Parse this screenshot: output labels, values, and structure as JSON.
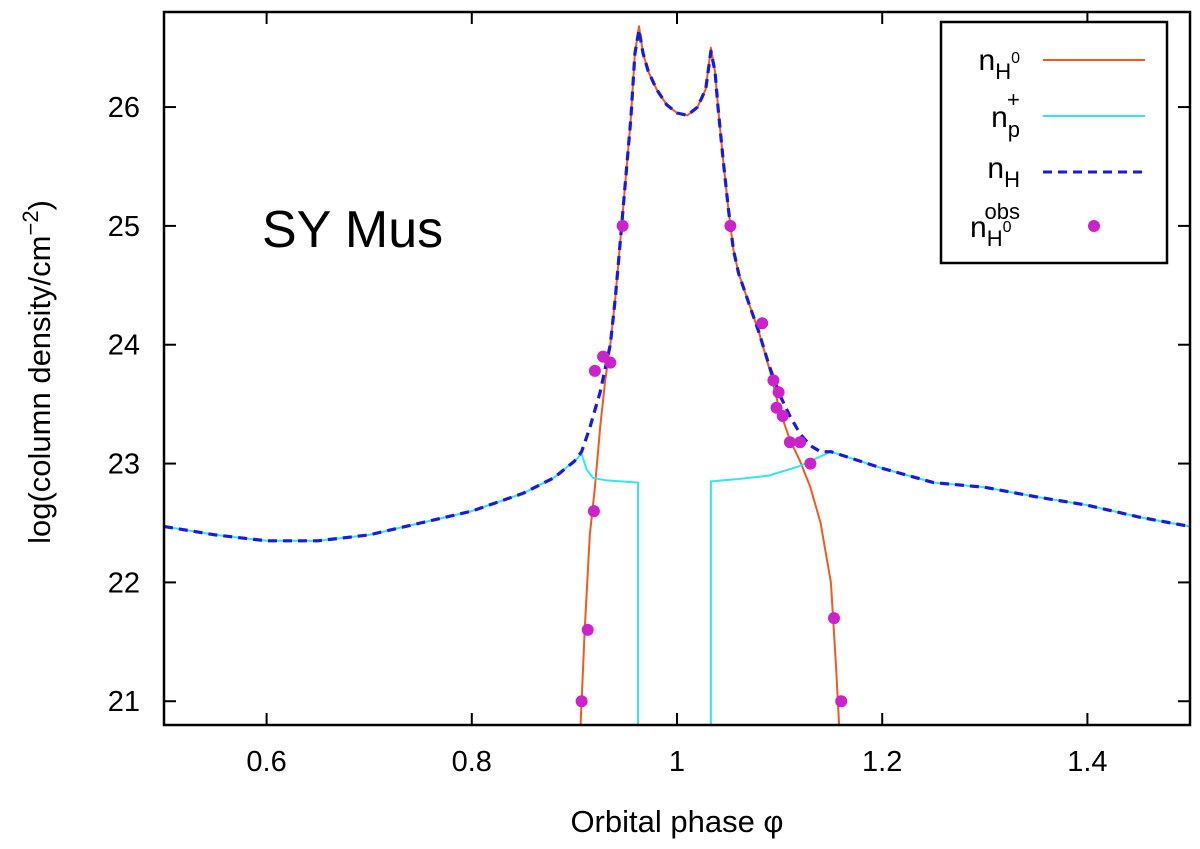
{
  "chart_data": {
    "type": "line",
    "title": "",
    "annotation": "SY Mus",
    "xlabel": "Orbital phase φ",
    "ylabel": "log(column density/cm−2)",
    "ylabel_parts": {
      "main": "log(column density/cm",
      "sup": "−2",
      "close": ")"
    },
    "xlim": [
      0.5,
      1.5
    ],
    "ylim": [
      20.8,
      26.8
    ],
    "xticks": [
      0.6,
      0.8,
      1.0,
      1.2,
      1.4
    ],
    "xtick_labels": [
      "0.6",
      "0.8",
      "1",
      "1.2",
      "1.4"
    ],
    "yticks": [
      21,
      22,
      23,
      24,
      25,
      26
    ],
    "ytick_labels": [
      "21",
      "22",
      "23",
      "24",
      "25",
      "26"
    ],
    "grid": false,
    "legend_position": "top-right",
    "colors": {
      "nH0": "#f05a1e",
      "np": "#33e6ee",
      "nH": "#1a1adc",
      "obs": "#cc22cc"
    },
    "series": [
      {
        "name": "nH0",
        "legend": {
          "base": "n",
          "sub": "H",
          "sup": "0",
          "sub_sup": "0"
        },
        "style": "solid",
        "segments": [
          [
            [
              0.906,
              20.8
            ],
            [
              0.91,
              21.6
            ],
            [
              0.915,
              22.4
            ],
            [
              0.92,
              22.8
            ],
            [
              0.925,
              23.3
            ],
            [
              0.93,
              23.7
            ],
            [
              0.935,
              24.0
            ],
            [
              0.94,
              24.4
            ],
            [
              0.945,
              24.9
            ],
            [
              0.95,
              25.4
            ],
            [
              0.955,
              25.9
            ],
            [
              0.959,
              26.45
            ],
            [
              0.963,
              26.68
            ],
            [
              0.967,
              26.45
            ],
            [
              0.972,
              26.3
            ],
            [
              0.98,
              26.15
            ],
            [
              0.99,
              26.02
            ],
            [
              1.0,
              25.95
            ],
            [
              1.01,
              25.93
            ],
            [
              1.02,
              26.0
            ],
            [
              1.028,
              26.15
            ],
            [
              1.033,
              26.5
            ],
            [
              1.037,
              26.3
            ],
            [
              1.04,
              26.0
            ],
            [
              1.045,
              25.55
            ],
            [
              1.05,
              25.15
            ],
            [
              1.055,
              24.8
            ],
            [
              1.06,
              24.6
            ],
            [
              1.07,
              24.35
            ],
            [
              1.08,
              24.1
            ],
            [
              1.09,
              23.8
            ],
            [
              1.1,
              23.45
            ],
            [
              1.11,
              23.2
            ],
            [
              1.12,
              23.02
            ],
            [
              1.13,
              22.8
            ],
            [
              1.14,
              22.5
            ],
            [
              1.15,
              22.0
            ],
            [
              1.155,
              21.3
            ],
            [
              1.158,
              20.8
            ]
          ]
        ]
      },
      {
        "name": "np+",
        "legend": {
          "base": "n",
          "sub": "p",
          "sup": "+"
        },
        "style": "solid",
        "segments": [
          [
            [
              0.5,
              22.47
            ],
            [
              0.55,
              22.4
            ],
            [
              0.6,
              22.35
            ],
            [
              0.65,
              22.35
            ],
            [
              0.7,
              22.4
            ],
            [
              0.75,
              22.5
            ],
            [
              0.8,
              22.6
            ],
            [
              0.85,
              22.75
            ],
            [
              0.88,
              22.88
            ],
            [
              0.9,
              23.02
            ],
            [
              0.907,
              23.08
            ],
            [
              0.912,
              22.95
            ],
            [
              0.918,
              22.88
            ],
            [
              0.93,
              22.86
            ],
            [
              0.962,
              22.84
            ],
            [
              0.962,
              20.8
            ]
          ],
          [
            [
              1.033,
              20.8
            ],
            [
              1.033,
              22.85
            ],
            [
              1.06,
              22.87
            ],
            [
              1.09,
              22.9
            ],
            [
              1.12,
              22.98
            ],
            [
              1.15,
              23.1
            ],
            [
              1.2,
              22.96
            ],
            [
              1.25,
              22.84
            ],
            [
              1.3,
              22.8
            ],
            [
              1.35,
              22.72
            ],
            [
              1.4,
              22.65
            ],
            [
              1.45,
              22.55
            ],
            [
              1.5,
              22.47
            ]
          ]
        ]
      },
      {
        "name": "nH",
        "legend": {
          "base": "n",
          "sub": "H"
        },
        "style": "dashed",
        "segments": [
          [
            [
              0.5,
              22.47
            ],
            [
              0.55,
              22.4
            ],
            [
              0.6,
              22.35
            ],
            [
              0.65,
              22.35
            ],
            [
              0.7,
              22.4
            ],
            [
              0.75,
              22.5
            ],
            [
              0.8,
              22.6
            ],
            [
              0.85,
              22.75
            ],
            [
              0.88,
              22.88
            ],
            [
              0.9,
              23.02
            ],
            [
              0.907,
              23.1
            ],
            [
              0.915,
              23.3
            ],
            [
              0.92,
              23.45
            ],
            [
              0.925,
              23.6
            ],
            [
              0.93,
              23.8
            ],
            [
              0.935,
              24.0
            ],
            [
              0.94,
              24.4
            ],
            [
              0.945,
              24.9
            ],
            [
              0.95,
              25.4
            ],
            [
              0.955,
              25.9
            ],
            [
              0.959,
              26.45
            ],
            [
              0.963,
              26.65
            ],
            [
              0.967,
              26.45
            ],
            [
              0.972,
              26.3
            ],
            [
              0.98,
              26.15
            ],
            [
              0.99,
              26.02
            ],
            [
              1.0,
              25.95
            ],
            [
              1.01,
              25.93
            ],
            [
              1.02,
              26.0
            ],
            [
              1.028,
              26.15
            ],
            [
              1.033,
              26.47
            ],
            [
              1.037,
              26.3
            ],
            [
              1.04,
              26.0
            ],
            [
              1.045,
              25.55
            ],
            [
              1.05,
              25.15
            ],
            [
              1.055,
              24.8
            ],
            [
              1.06,
              24.6
            ],
            [
              1.07,
              24.35
            ],
            [
              1.08,
              24.1
            ],
            [
              1.09,
              23.82
            ],
            [
              1.1,
              23.58
            ],
            [
              1.11,
              23.4
            ],
            [
              1.12,
              23.25
            ],
            [
              1.13,
              23.15
            ],
            [
              1.14,
              23.1
            ],
            [
              1.15,
              23.1
            ],
            [
              1.2,
              22.96
            ],
            [
              1.25,
              22.84
            ],
            [
              1.3,
              22.8
            ],
            [
              1.35,
              22.72
            ],
            [
              1.4,
              22.65
            ],
            [
              1.45,
              22.55
            ],
            [
              1.5,
              22.47
            ]
          ]
        ]
      }
    ],
    "observations": {
      "name": "nH0 obs",
      "legend": {
        "base": "n",
        "sub": "H",
        "sub_sup": "0",
        "sup": "obs"
      },
      "points": [
        {
          "x": 0.907,
          "y": 21.0
        },
        {
          "x": 0.913,
          "y": 21.6
        },
        {
          "x": 0.919,
          "y": 22.6
        },
        {
          "x": 0.92,
          "y": 23.78
        },
        {
          "x": 0.928,
          "y": 23.9
        },
        {
          "x": 0.935,
          "y": 23.85
        },
        {
          "x": 0.947,
          "y": 25.0
        },
        {
          "x": 1.052,
          "y": 25.0
        },
        {
          "x": 1.083,
          "y": 24.18
        },
        {
          "x": 1.094,
          "y": 23.7
        },
        {
          "x": 1.097,
          "y": 23.47
        },
        {
          "x": 1.099,
          "y": 23.6
        },
        {
          "x": 1.103,
          "y": 23.4
        },
        {
          "x": 1.11,
          "y": 23.18
        },
        {
          "x": 1.12,
          "y": 23.18
        },
        {
          "x": 1.13,
          "y": 23.0
        },
        {
          "x": 1.153,
          "y": 21.7
        },
        {
          "x": 1.16,
          "y": 21.0
        }
      ]
    }
  }
}
